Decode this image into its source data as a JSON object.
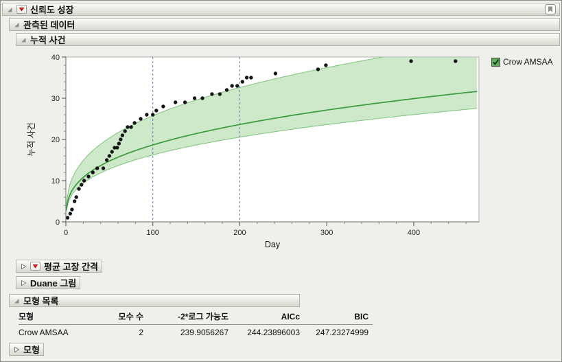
{
  "outline": {
    "root": "신뢰도 성장",
    "observed": "관측된 데이터",
    "cumulative": "누적 사건",
    "mtbf": "평균 고장 간격",
    "duane": "Duane 그림",
    "model_list": "모형 목록",
    "model": "모형"
  },
  "legend": {
    "label": "Crow AMSAA",
    "checked": true,
    "swatch_color": "#5fae5f"
  },
  "chart_data": {
    "type": "scatter",
    "title": "누적 사건",
    "xlabel": "Day",
    "ylabel": "누적 사건",
    "xlim": [
      0,
      475
    ],
    "ylim": [
      0,
      40
    ],
    "x_ticks": [
      0,
      100,
      200,
      300,
      400
    ],
    "y_ticks": [
      0,
      10,
      20,
      30,
      40
    ],
    "x_minor_step": 20,
    "y_minor_step": 2,
    "grid": false,
    "legend_position": "right-top",
    "phase_boundaries": [
      100,
      200
    ],
    "points": [
      [
        2,
        1
      ],
      [
        5,
        2
      ],
      [
        7,
        3
      ],
      [
        10,
        5
      ],
      [
        12,
        6
      ],
      [
        15,
        8
      ],
      [
        18,
        9
      ],
      [
        21,
        10
      ],
      [
        26,
        11
      ],
      [
        31,
        12
      ],
      [
        36,
        13
      ],
      [
        43,
        13
      ],
      [
        47,
        15
      ],
      [
        50,
        16
      ],
      [
        53,
        17
      ],
      [
        56,
        18
      ],
      [
        59,
        18
      ],
      [
        61,
        19
      ],
      [
        63,
        20
      ],
      [
        65,
        21
      ],
      [
        68,
        22
      ],
      [
        71,
        23
      ],
      [
        75,
        23
      ],
      [
        79,
        24
      ],
      [
        86,
        25
      ],
      [
        93,
        26
      ],
      [
        100,
        26
      ],
      [
        104,
        27
      ],
      [
        112,
        28
      ],
      [
        126,
        29
      ],
      [
        137,
        29
      ],
      [
        148,
        30
      ],
      [
        157,
        30
      ],
      [
        168,
        31
      ],
      [
        177,
        31
      ],
      [
        185,
        32
      ],
      [
        191,
        33
      ],
      [
        197,
        33
      ],
      [
        203,
        34
      ],
      [
        208,
        35
      ],
      [
        213,
        35
      ],
      [
        241,
        36
      ],
      [
        290,
        37
      ],
      [
        299,
        38
      ],
      [
        397,
        39
      ],
      [
        448,
        39
      ]
    ],
    "fit": {
      "name": "Crow AMSAA",
      "lambda": 3.9,
      "beta": 0.34,
      "band_upper_factor": 1.38,
      "band_lower_factor": 0.87,
      "line_color": "#3a9a3e",
      "band_color": "#aed8a6",
      "band_edge_color": "#7cc47c"
    }
  },
  "model_table": {
    "columns": [
      {
        "label": "모형",
        "align": "left"
      },
      {
        "label": "모수 수",
        "align": "right"
      },
      {
        "label": "-2*로그 가능도",
        "align": "right"
      },
      {
        "label": "AICc",
        "align": "right"
      },
      {
        "label": "BIC",
        "align": "right"
      }
    ],
    "rows": [
      [
        "Crow AMSAA",
        "2",
        "239.9056267",
        "244.23896003",
        "247.23274999"
      ]
    ]
  }
}
